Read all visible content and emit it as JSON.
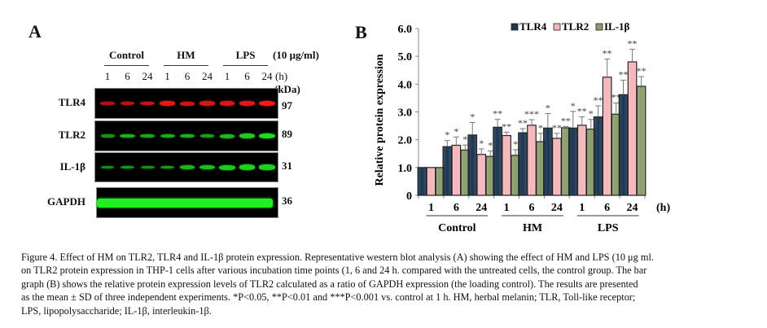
{
  "panel_a": {
    "letter": "A",
    "groups": [
      "Control",
      "HM",
      "LPS"
    ],
    "dose_label": "(10 μg/ml)",
    "lanes": [
      "1",
      "6",
      "24",
      "1",
      "6",
      "24",
      "1",
      "6",
      "24"
    ],
    "time_unit": "(h)",
    "kda_label": "(kDa)",
    "blots": [
      {
        "name": "TLR4",
        "kda": "97",
        "color": "#ff1a1a",
        "intensity": [
          0.35,
          0.45,
          0.5,
          0.8,
          0.6,
          0.65,
          0.7,
          0.75,
          0.95
        ]
      },
      {
        "name": "TLR2",
        "kda": "89",
        "color": "#22e022",
        "intensity": [
          0.25,
          0.55,
          0.45,
          0.5,
          0.55,
          0.35,
          0.6,
          0.8,
          0.95
        ]
      },
      {
        "name": "IL-1β",
        "kda": "31",
        "color": "#22e022",
        "intensity": [
          0.2,
          0.3,
          0.25,
          0.35,
          0.6,
          0.7,
          0.8,
          0.85,
          0.85
        ]
      },
      {
        "name": "GAPDH",
        "kda": "36",
        "color": "#22ee22",
        "intensity": [
          1,
          1,
          1,
          1,
          1,
          1,
          1,
          1,
          1
        ]
      }
    ]
  },
  "panel_b": {
    "letter": "B"
  },
  "chart_data": {
    "type": "bar",
    "title": "",
    "xlabel": "",
    "ylabel": "Relative protein expression",
    "ylim": [
      0,
      6
    ],
    "yticks": [
      "0",
      "1.0",
      "2.0",
      "3.0",
      "4.0",
      "5.0",
      "6.0"
    ],
    "categories": [
      "1",
      "6",
      "24",
      "1",
      "6",
      "24",
      "1",
      "6",
      "24"
    ],
    "category_groups": [
      {
        "label": "Control",
        "span": [
          0,
          2
        ]
      },
      {
        "label": "HM",
        "span": [
          3,
          5
        ]
      },
      {
        "label": "LPS",
        "span": [
          6,
          8
        ]
      }
    ],
    "x_unit": "(h)",
    "legend": {
      "position": "top-right"
    },
    "series": [
      {
        "name": "TLR4",
        "color": "#1c3551",
        "values": [
          1.0,
          1.75,
          2.17,
          2.45,
          2.25,
          2.42,
          2.42,
          2.82,
          3.62
        ],
        "errors": [
          0.0,
          0.22,
          0.45,
          0.28,
          0.15,
          0.52,
          0.6,
          0.4,
          0.52
        ],
        "significance": [
          "",
          "*",
          "*",
          "**",
          "**",
          "*",
          "*",
          "**",
          "**"
        ]
      },
      {
        "name": "TLR2",
        "color": "#f4b6b9",
        "values": [
          1.0,
          1.8,
          1.47,
          2.15,
          2.52,
          2.05,
          2.52,
          4.25,
          4.8
        ],
        "errors": [
          0.0,
          0.3,
          0.2,
          0.12,
          0.2,
          0.18,
          0.3,
          0.65,
          0.45
        ],
        "significance": [
          "",
          "*",
          "*",
          "**",
          "***",
          "**",
          "**",
          "**",
          "**"
        ]
      },
      {
        "name": "IL-1β",
        "color": "#8a9e6c",
        "values": [
          1.0,
          1.63,
          1.4,
          1.44,
          1.93,
          2.43,
          2.38,
          2.92,
          3.92
        ],
        "errors": [
          0.0,
          0.18,
          0.2,
          0.2,
          0.3,
          0.05,
          0.35,
          0.4,
          0.35
        ],
        "significance": [
          "",
          "*",
          "*",
          "*",
          "*",
          "**",
          "*",
          "**",
          "**"
        ]
      }
    ]
  },
  "caption": {
    "lines": [
      "Figure 4. Effect of HM on TLR2, TLR4 and IL-1β protein expression. Representative western blot analysis (A) showing the effect of HM and LPS (10 μg ml.",
      "on TLR2 protein expression in THP-1 cells after various incubation time points (1, 6 and 24 h. compared with the untreated cells, the control group. The bar",
      "graph (B) shows the relative protein expression levels of TLR2 calculated as a ratio of GAPDH expression (the loading control). The results are presented",
      "as the mean ± SD of three independent experiments. *P<0.05, **P<0.01 and ***P<0.001 vs. control at 1 h. HM, herbal melanin; TLR, Toll-like receptor;",
      "LPS, lipopolysaccharide; IL-1β, interleukin-1β."
    ]
  }
}
